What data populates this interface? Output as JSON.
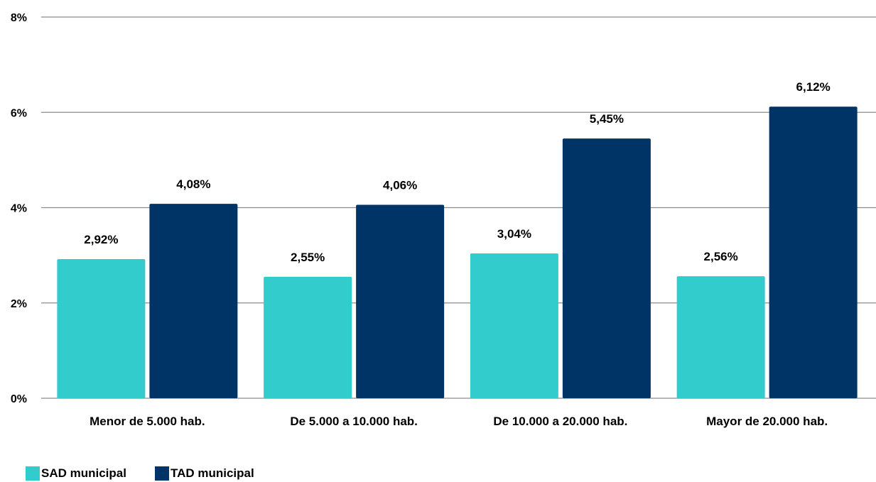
{
  "chart_data": {
    "type": "bar",
    "title": "",
    "xlabel": "",
    "ylabel": "",
    "categories": [
      "Menor de 5.000 hab.",
      "De 5.000 a 10.000 hab.",
      "De 10.000 a 20.000 hab.",
      "Mayor de 20.000 hab."
    ],
    "series": [
      {
        "name": "SAD municipal",
        "color": "#33CCCC",
        "values": [
          2.92,
          2.55,
          3.04,
          2.56
        ],
        "labels": [
          "2,92%",
          "2,55%",
          "3,04%",
          "2,56%"
        ]
      },
      {
        "name": "TAD municipal",
        "color": "#003366",
        "values": [
          4.08,
          4.06,
          5.45,
          6.12
        ],
        "labels": [
          "4,08%",
          "4,06%",
          "5,45%",
          "6,12%"
        ]
      }
    ],
    "ylim": [
      0,
      8
    ],
    "yticks": [
      0,
      2,
      4,
      6,
      8
    ],
    "ytick_labels": [
      "0%",
      "2%",
      "4%",
      "6%",
      "8%"
    ],
    "grid": true,
    "legend": "bottom-left"
  }
}
